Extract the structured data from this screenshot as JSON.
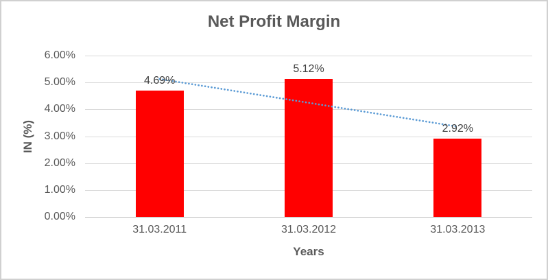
{
  "chart_data": {
    "type": "bar",
    "title": "Net Profit Margin",
    "categories": [
      "31.03.2011",
      "31.03.2012",
      "31.03.2013"
    ],
    "values": [
      4.69,
      5.12,
      2.92
    ],
    "data_labels": [
      "4.69%",
      "5.12%",
      "2.92%"
    ],
    "xlabel": "Years",
    "ylabel": "IN (%)",
    "ylim": [
      0,
      6
    ],
    "ytick_labels": [
      "0.00%",
      "1.00%",
      "2.00%",
      "3.00%",
      "4.00%",
      "5.00%",
      "6.00%"
    ],
    "grid": true,
    "legend": "none",
    "bar_color": "#FF0000",
    "trendline": {
      "type": "linear",
      "style": "dotted",
      "color": "#5B9BD5"
    },
    "colors": {
      "title_text": "#595959",
      "tick_text": "#595959",
      "data_label_text": "#404040",
      "gridline": "#D9D9D9",
      "axis_line": "#BFBFBF",
      "frame_border": "#D0D0D0",
      "background": "#FFFFFF"
    }
  }
}
